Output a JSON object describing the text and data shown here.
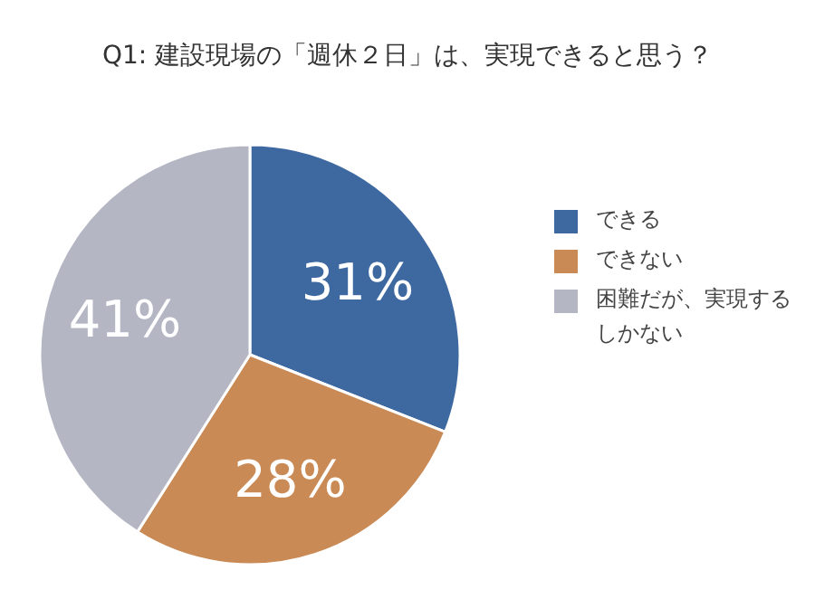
{
  "chart_data": {
    "type": "pie",
    "title": "Q1: 建設現場の「週休２日」は、実現できると思う？",
    "categories": [
      "できる",
      "できない",
      "困難だが、実現するしかない"
    ],
    "values": [
      31,
      28,
      41
    ],
    "value_labels": [
      "31%",
      "28%",
      "41%"
    ],
    "colors": [
      "#3d68a0",
      "#c98a55",
      "#b4b6c4"
    ],
    "legend": "right"
  }
}
